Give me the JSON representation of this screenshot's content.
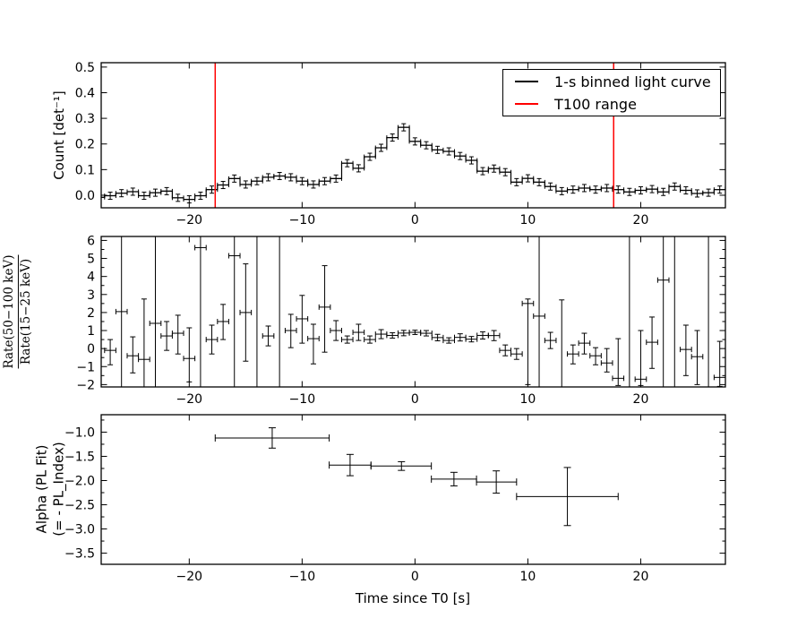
{
  "figure": {
    "background": "#ffffff"
  },
  "xlabel": "Time since T0 [s]",
  "xticks": {
    "values": [
      -20,
      -10,
      0,
      10,
      20
    ],
    "labels": [
      "−20",
      "−10",
      "0",
      "10",
      "20"
    ]
  },
  "legend": {
    "entries": [
      {
        "label": "1-s binned light curve",
        "color": "#000000"
      },
      {
        "label": "T100 range",
        "color": "#ff0000"
      }
    ]
  },
  "panels": {
    "light_curve": {
      "ylabel": "Count [det⁻¹]",
      "ytick_labels": [
        "0.0",
        "0.1",
        "0.2",
        "0.3",
        "0.4",
        "0.5"
      ]
    },
    "hardness_ratio": {
      "ylabel_numerator": "Rate(50−100 keV)",
      "ylabel_denominator": "Rate(15−25 keV)",
      "ytick_labels": [
        "−2",
        "−1",
        "0",
        "1",
        "2",
        "3",
        "4",
        "5",
        "6"
      ]
    },
    "alpha": {
      "ylabel_line1": "Alpha (PL Fit)",
      "ylabel_line2": "(= - PL_Index)",
      "ytick_labels": [
        "−1.0",
        "−1.5",
        "−2.0",
        "−2.5",
        "−3.0",
        "−3.5"
      ]
    }
  },
  "chart_data": [
    {
      "type": "step-histogram-errorbar",
      "panel": "light_curve",
      "xlim": [
        -27.8,
        27.5
      ],
      "ylim": [
        -0.049,
        0.517
      ],
      "yticks": [
        0.0,
        0.1,
        0.2,
        0.3,
        0.4,
        0.5
      ],
      "bin_width": 1,
      "bin_centers": [
        -28,
        -27,
        -26,
        -25,
        -24,
        -23,
        -22,
        -21,
        -20,
        -19,
        -18,
        -17,
        -16,
        -15,
        -14,
        -13,
        -12,
        -11,
        -10,
        -9,
        -8,
        -7,
        -6,
        -5,
        -4,
        -3,
        -2,
        -1,
        0,
        1,
        2,
        3,
        4,
        5,
        6,
        7,
        8,
        9,
        10,
        11,
        12,
        13,
        14,
        15,
        16,
        17,
        18,
        19,
        20,
        21,
        22,
        23,
        24,
        25,
        26,
        27,
        28
      ],
      "counts": [
        -0.008,
        -0.002,
        0.008,
        0.014,
        -0.002,
        0.01,
        0.016,
        -0.01,
        -0.016,
        -0.002,
        0.022,
        0.04,
        0.065,
        0.042,
        0.055,
        0.07,
        0.075,
        0.07,
        0.055,
        0.042,
        0.055,
        0.065,
        0.125,
        0.105,
        0.15,
        0.185,
        0.225,
        0.265,
        0.21,
        0.195,
        0.177,
        0.171,
        0.153,
        0.136,
        0.094,
        0.104,
        0.09,
        0.051,
        0.066,
        0.051,
        0.034,
        0.016,
        0.022,
        0.028,
        0.022,
        0.028,
        0.022,
        0.013,
        0.019,
        0.024,
        0.013,
        0.034,
        0.019,
        0.007,
        0.01,
        0.022,
        0.031
      ],
      "yerr": 0.014,
      "t100_range": [
        -17.7,
        17.6
      ],
      "line_color": "#000000",
      "t100_color": "#ff0000"
    },
    {
      "type": "errorbar-scatter",
      "panel": "hardness_ratio",
      "xlim": [
        -27.8,
        27.5
      ],
      "ylim": [
        -2.13,
        6.22
      ],
      "yticks": [
        -2,
        -1,
        0,
        1,
        2,
        3,
        4,
        5,
        6
      ],
      "y_minor_step": 0.5,
      "xerr": 0.5,
      "err_clip_value": 99,
      "points": [
        [
          -27,
          -0.1,
          0.8,
          0.6
        ],
        [
          -26,
          2.05,
          99,
          99
        ],
        [
          -25,
          -0.4,
          0.95,
          1.05
        ],
        [
          -24,
          -0.6,
          2.2,
          3.35
        ],
        [
          -23,
          1.4,
          99,
          99
        ],
        [
          -22,
          0.7,
          0.8,
          0.8
        ],
        [
          -21,
          0.85,
          1.15,
          1.0
        ],
        [
          -20,
          -0.55,
          1.3,
          1.7
        ],
        [
          -19,
          5.6,
          99,
          99
        ],
        [
          -18,
          0.5,
          0.8,
          0.8
        ],
        [
          -17,
          1.5,
          1.0,
          0.95
        ],
        [
          -16,
          5.15,
          99,
          99
        ],
        [
          -15,
          2.0,
          2.7,
          2.7
        ],
        [
          -14,
          null,
          0,
          0
        ],
        [
          -13,
          0.7,
          0.55,
          0.55
        ],
        [
          -12,
          null,
          0,
          0
        ],
        [
          -11,
          1.0,
          0.95,
          0.9
        ],
        [
          -10,
          1.65,
          1.35,
          1.3
        ],
        [
          -9,
          0.55,
          1.4,
          0.8
        ],
        [
          -8,
          2.3,
          2.5,
          2.3
        ],
        [
          -7,
          1.0,
          0.55,
          0.55
        ],
        [
          -6,
          0.5,
          0.2,
          0.2
        ],
        [
          -5,
          0.9,
          0.45,
          0.45
        ],
        [
          -4,
          0.5,
          0.2,
          0.2
        ],
        [
          -3,
          0.8,
          0.25,
          0.25
        ],
        [
          -2,
          0.73,
          0.15,
          0.15
        ],
        [
          -1,
          0.86,
          0.15,
          0.15
        ],
        [
          0,
          0.9,
          0.12,
          0.12
        ],
        [
          1,
          0.85,
          0.15,
          0.15
        ],
        [
          2,
          0.61,
          0.18,
          0.18
        ],
        [
          3,
          0.45,
          0.15,
          0.15
        ],
        [
          4,
          0.62,
          0.2,
          0.2
        ],
        [
          5,
          0.52,
          0.15,
          0.15
        ],
        [
          6,
          0.73,
          0.2,
          0.2
        ],
        [
          7,
          0.72,
          0.28,
          0.28
        ],
        [
          8,
          -0.1,
          0.3,
          0.3
        ],
        [
          9,
          -0.3,
          0.3,
          0.3
        ],
        [
          10,
          2.5,
          4.5,
          0.25
        ],
        [
          11,
          1.8,
          99,
          99
        ],
        [
          12,
          0.45,
          0.45,
          0.45
        ],
        [
          13,
          -2.6,
          0.5,
          5.3
        ],
        [
          14,
          -0.3,
          0.55,
          0.5
        ],
        [
          15,
          0.3,
          0.6,
          0.55
        ],
        [
          16,
          -0.4,
          0.5,
          0.45
        ],
        [
          17,
          -0.8,
          0.5,
          0.8
        ],
        [
          18,
          -1.65,
          0.4,
          2.2
        ],
        [
          19,
          null,
          0,
          0
        ],
        [
          20,
          -1.7,
          0.35,
          2.7
        ],
        [
          21,
          0.35,
          1.45,
          1.4
        ],
        [
          22,
          3.8,
          99,
          99
        ],
        [
          23,
          null,
          0,
          0
        ],
        [
          24,
          -0.05,
          1.45,
          1.35
        ],
        [
          25,
          -0.45,
          1.55,
          1.45
        ],
        [
          26,
          null,
          0,
          0
        ],
        [
          27,
          -1.6,
          0.5,
          2.0
        ]
      ]
    },
    {
      "type": "errorbar-scatter",
      "panel": "alpha",
      "xlim": [
        -27.8,
        27.5
      ],
      "ylim": [
        -3.73,
        -0.64
      ],
      "yticks": [
        -1.0,
        -1.5,
        -2.0,
        -2.5,
        -3.0,
        -3.5
      ],
      "y_minor_step": 0.25,
      "points": [
        {
          "x": -12.65,
          "x_lo": -17.7,
          "x_hi": -7.6,
          "y": -1.12,
          "yerr": 0.21
        },
        {
          "x": -5.75,
          "x_lo": -7.6,
          "x_hi": -3.9,
          "y": -1.68,
          "yerr": 0.22
        },
        {
          "x": -1.2,
          "x_lo": -3.9,
          "x_hi": 1.45,
          "y": -1.7,
          "yerr": 0.09
        },
        {
          "x": 3.45,
          "x_lo": 1.45,
          "x_hi": 5.45,
          "y": -1.97,
          "yerr": 0.14
        },
        {
          "x": 7.2,
          "x_lo": 5.45,
          "x_hi": 9.0,
          "y": -2.03,
          "yerr": 0.23
        },
        {
          "x": 13.5,
          "x_lo": 9.0,
          "x_hi": 18.0,
          "y": -2.33,
          "yerr": 0.6
        }
      ]
    }
  ]
}
